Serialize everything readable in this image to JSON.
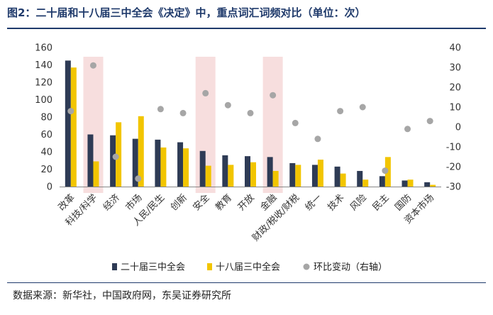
{
  "header": {
    "title": "图2：二十届和十八届三中全会《决定》中，重点词汇词频对比（单位：次）"
  },
  "footer": {
    "source": "数据来源：新华社，中国政府网，东吴证券研究所"
  },
  "colors": {
    "series1": "#2e3b55",
    "series2": "#f2c500",
    "series3": "#a6a6a6",
    "highlight": "#f7dede",
    "rule": "#1f3a6b"
  },
  "chart_data": {
    "type": "bar",
    "title": "",
    "xlabel": "",
    "ylabel": "",
    "categories": [
      "改革",
      "科技/科学",
      "经济",
      "市场",
      "人民/民生",
      "创新",
      "安全",
      "教育",
      "开放",
      "金融",
      "财政/税收/财税",
      "统一",
      "技术",
      "风险",
      "民主",
      "国防",
      "资本市场"
    ],
    "series": [
      {
        "name": "二十届三中全会",
        "kind": "bar",
        "axis": "left",
        "values": [
          145,
          60,
          59,
          55,
          54,
          51,
          41,
          36,
          35,
          34,
          27,
          25,
          23,
          18,
          12,
          7,
          5
        ]
      },
      {
        "name": "十八届三中全会",
        "kind": "bar",
        "axis": "left",
        "values": [
          137,
          29,
          74,
          81,
          45,
          44,
          24,
          25,
          28,
          18,
          25,
          31,
          15,
          8,
          34,
          8,
          2
        ]
      },
      {
        "name": "环比变动（右轴）",
        "kind": "scatter",
        "axis": "right",
        "values": [
          8,
          31,
          -15,
          -26,
          9,
          7,
          17,
          11,
          7,
          16,
          2,
          -6,
          8,
          10,
          -22,
          -1,
          3
        ]
      }
    ],
    "ylim": [
      0,
      160
    ],
    "yticks": [
      0,
      20,
      40,
      60,
      80,
      100,
      120,
      140,
      160
    ],
    "y2lim": [
      -30,
      40
    ],
    "y2ticks": [
      -30,
      -20,
      -10,
      0,
      10,
      20,
      30,
      40
    ],
    "highlighted_categories": [
      "科技/科学",
      "安全",
      "金融"
    ],
    "legend_position": "bottom",
    "grid": false
  }
}
